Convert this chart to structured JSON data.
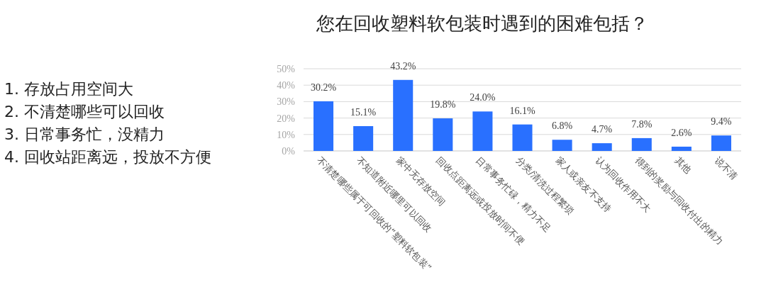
{
  "chart_data": {
    "type": "bar",
    "title": "您在回收塑料软包装时遇到的困难包括？",
    "categories": [
      "不清楚哪些属于可回收的“塑料软包装”",
      "不知道附近哪里可以回收",
      "家中无存放空间",
      "回收点距离远或投放时间不便",
      "日常事务忙碌，精力不足",
      "分类/清洗过程繁琐",
      "家人或亲友不支持",
      "认为回收作用不大",
      "得到的奖励与回收付出的精力",
      "其他",
      "说不清"
    ],
    "values": [
      30.2,
      15.1,
      43.2,
      19.8,
      24.0,
      16.1,
      6.8,
      4.7,
      7.8,
      2.6,
      9.4
    ],
    "value_labels": [
      "30.2%",
      "15.1%",
      "43.2%",
      "19.8%",
      "24.0%",
      "16.1%",
      "6.8%",
      "4.7%",
      "7.8%",
      "2.6%",
      "9.4%"
    ],
    "color": "#2970ff",
    "ylim": [
      0,
      50
    ],
    "yticks": [
      {
        "value": 0,
        "label": "0%"
      },
      {
        "value": 10,
        "label": "10%"
      },
      {
        "value": 20,
        "label": "20%"
      },
      {
        "value": 30,
        "label": "30%"
      },
      {
        "value": 40,
        "label": "40%"
      },
      {
        "value": 50,
        "label": "50%"
      }
    ],
    "grid": "y",
    "annotations": [
      "1. 存放占用空间大",
      "2. 不清楚哪些可以回收",
      "3. 日常事务忙，没精力",
      "4. 回收站距离远，投放不方便"
    ]
  }
}
